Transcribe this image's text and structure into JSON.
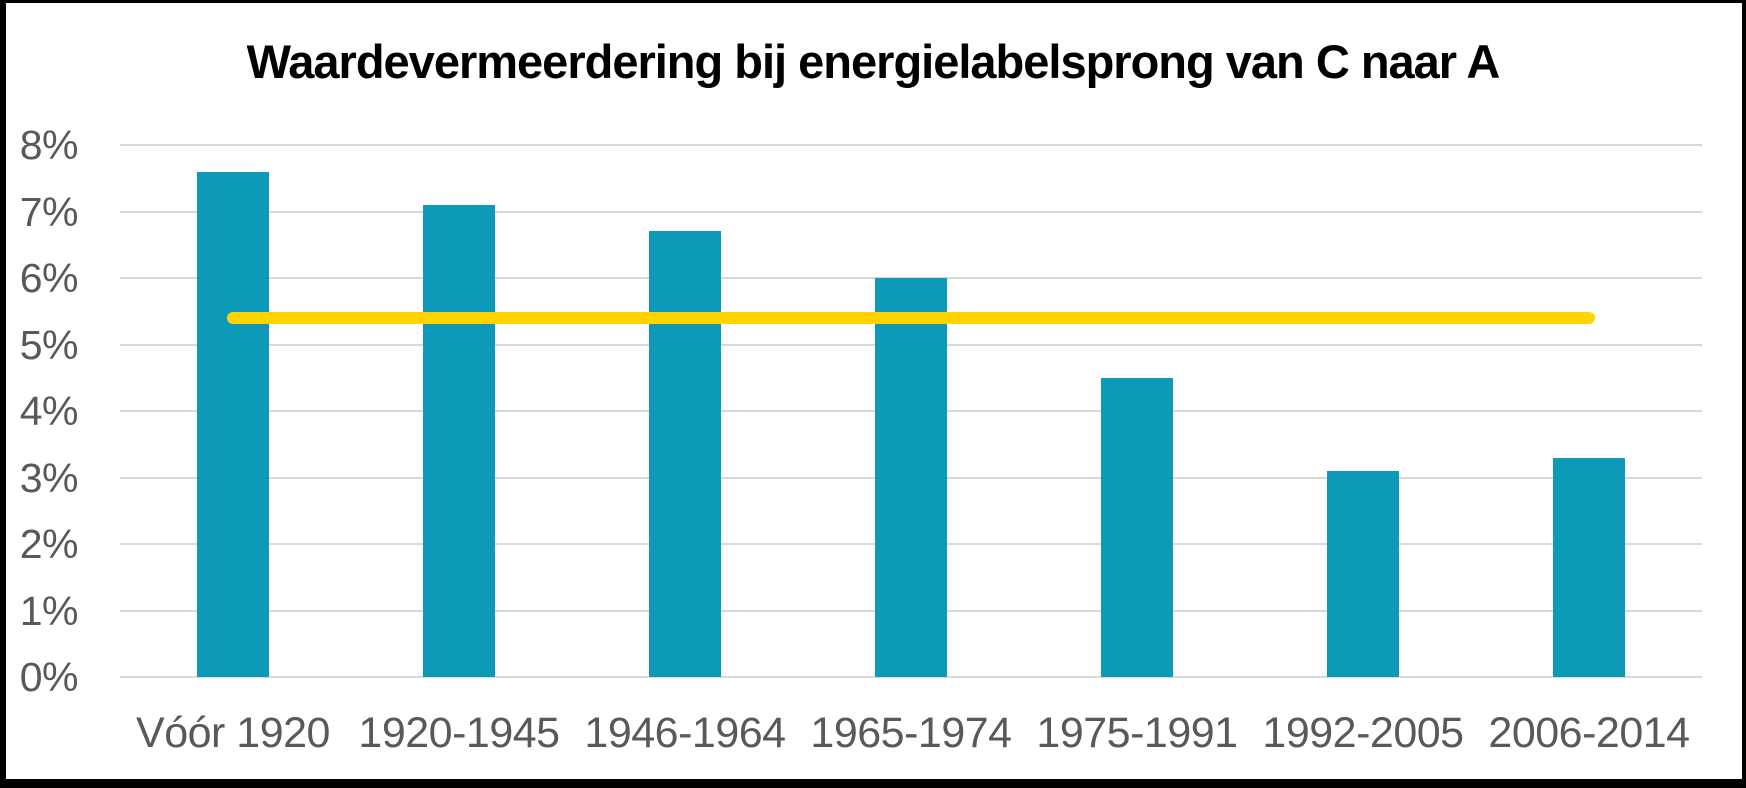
{
  "frame": {
    "border_color": "#000000",
    "background_color": "#ffffff"
  },
  "chart_data": {
    "type": "bar",
    "title": "Waardevermeerdering bij energielabelsprong van C naar A",
    "categories": [
      "Vóór 1920",
      "1920-1945",
      "1946-1964",
      "1965-1974",
      "1975-1991",
      "1992-2005",
      "2006-2014"
    ],
    "values": [
      7.6,
      7.1,
      6.7,
      6.0,
      4.5,
      3.1,
      3.3
    ],
    "value_unit": "%",
    "reference_line": {
      "value": 5.4,
      "orientation": "horizontal",
      "color": "#ffd400",
      "extent": "center of first bar to center of last bar"
    },
    "xlabel": "",
    "ylabel": "",
    "ylim": [
      0,
      8
    ],
    "ytick_step": 1,
    "ytick_labels": [
      "0%",
      "1%",
      "2%",
      "3%",
      "4%",
      "5%",
      "6%",
      "7%",
      "8%"
    ],
    "grid": "horizontal",
    "legend": "none",
    "colors": {
      "bar": "#0d9ab8",
      "gridline": "#d9d9d9",
      "axis_text": "#595959",
      "title_text": "#000000"
    }
  }
}
